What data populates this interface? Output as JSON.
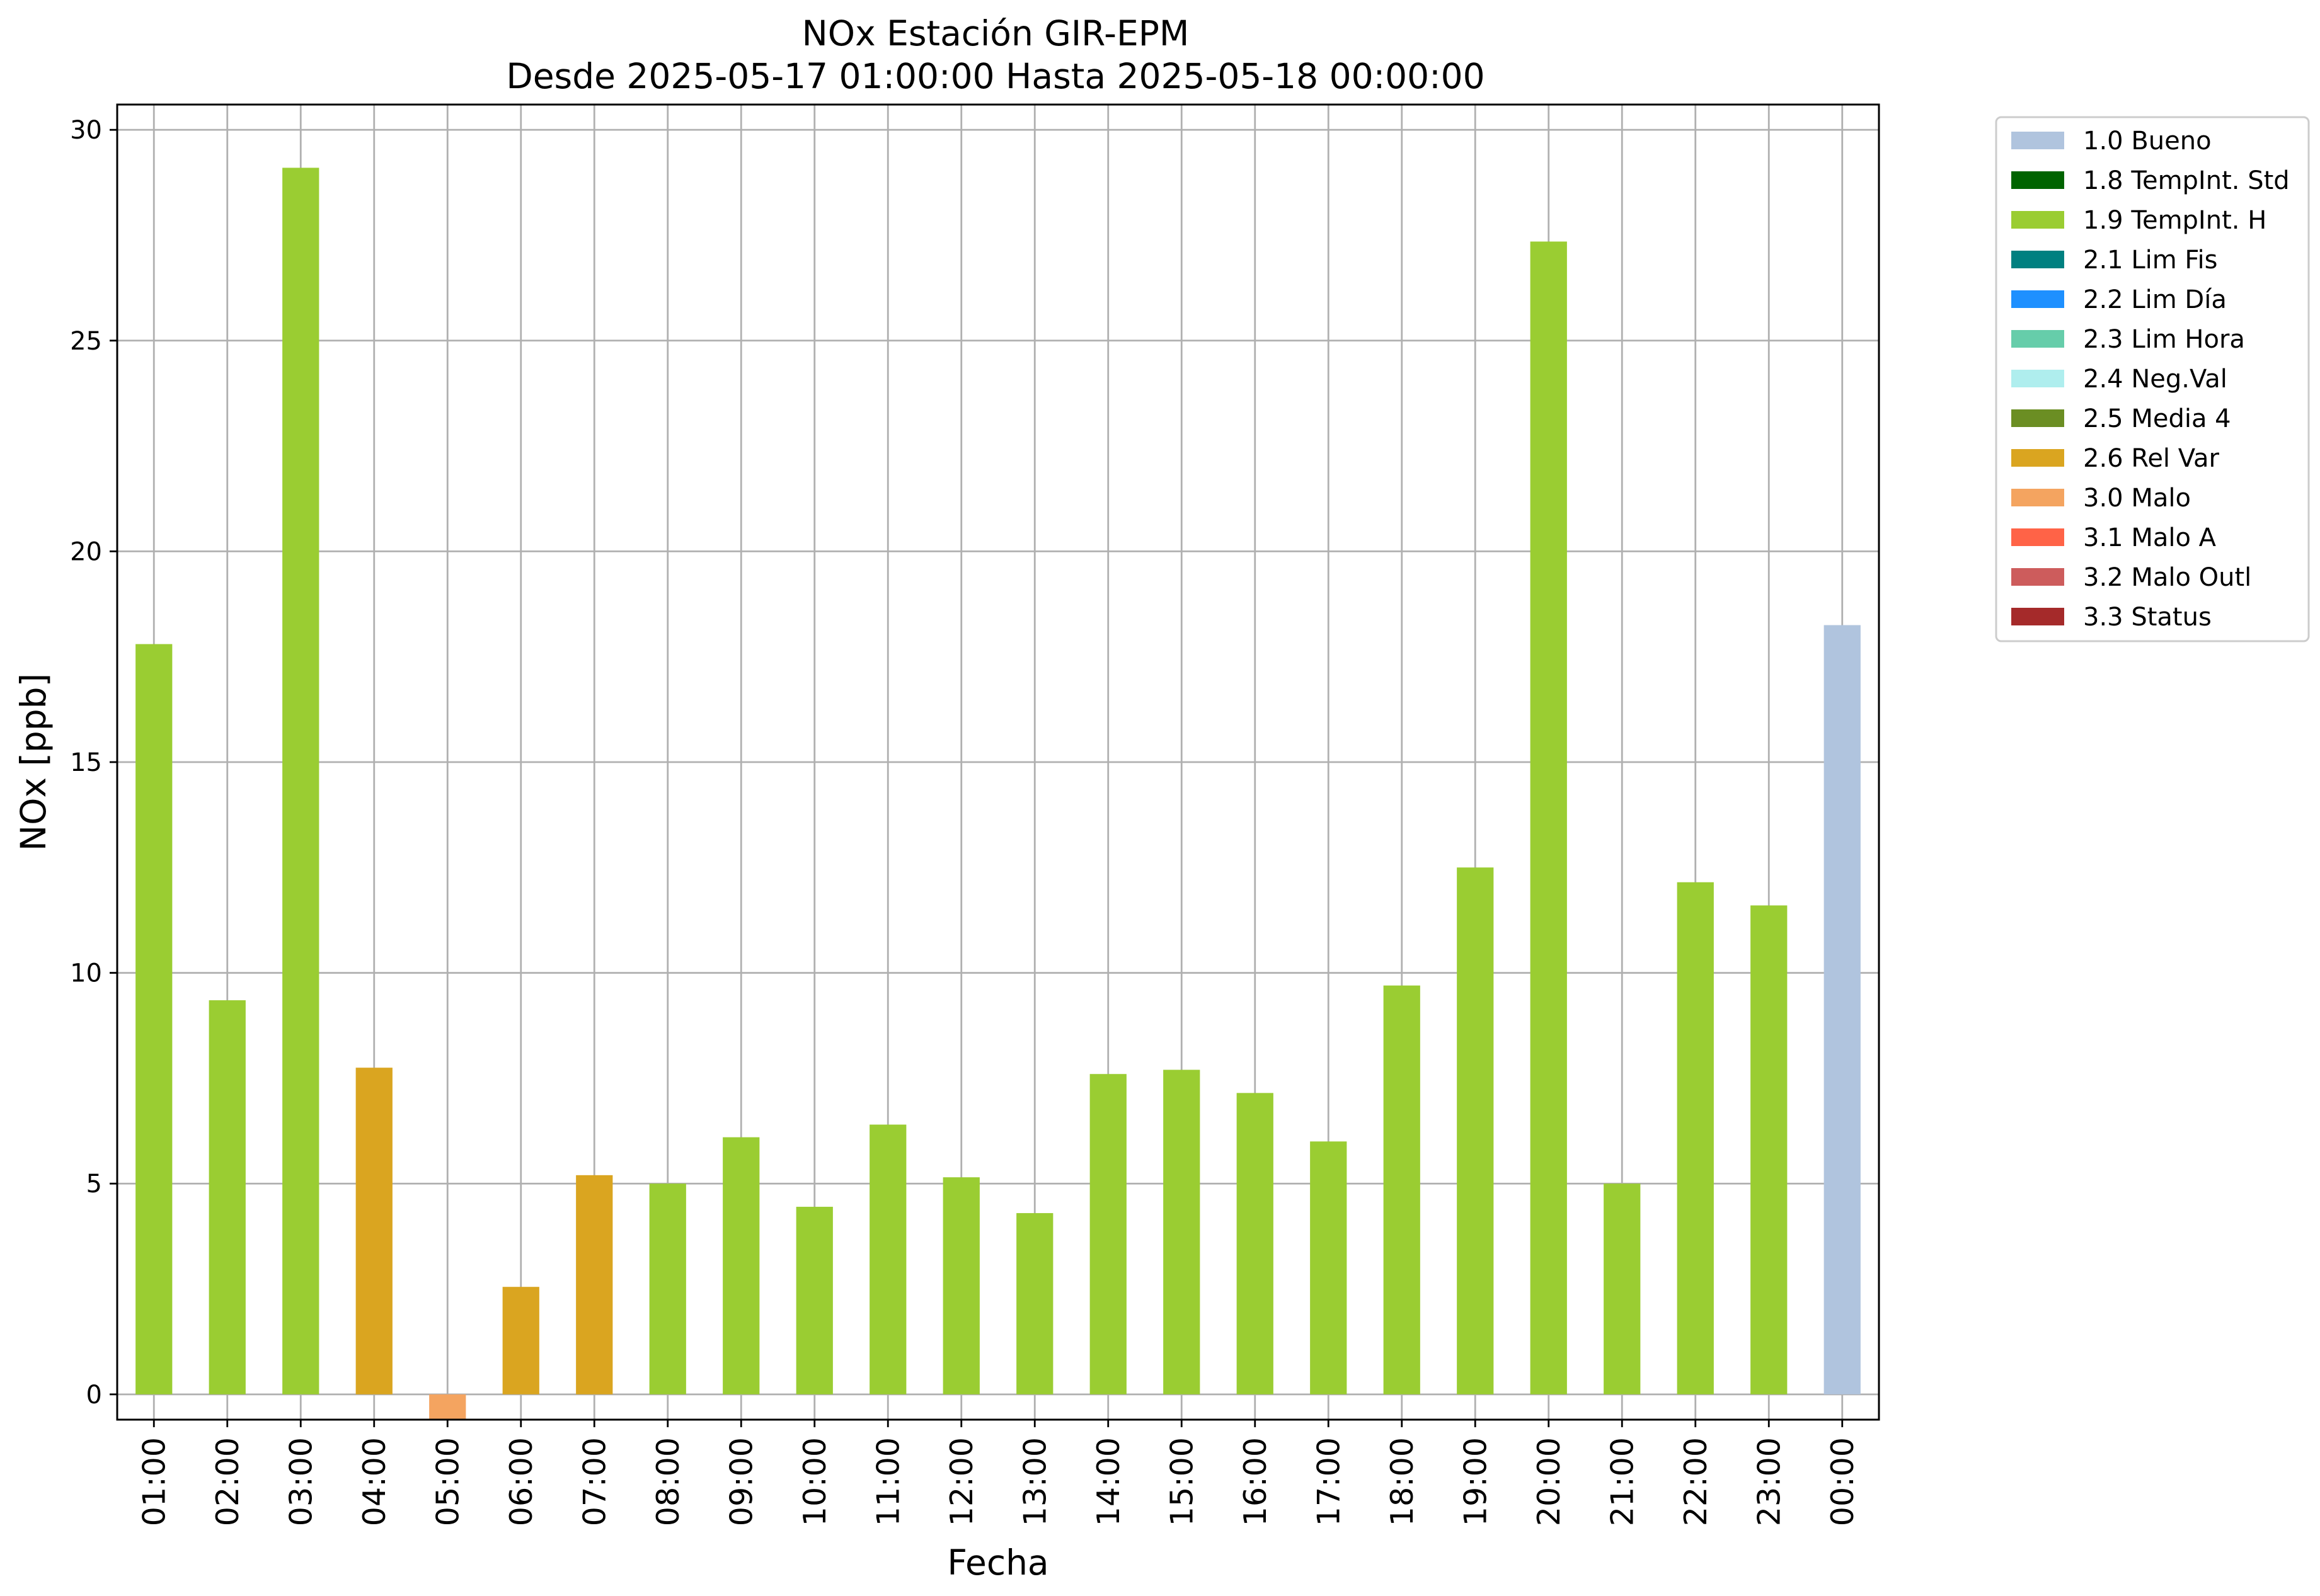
{
  "chart_data": {
    "type": "bar",
    "title": "NOx Estación GIR-EPM",
    "subtitle": "Desde 2025-05-17 01:00:00 Hasta 2025-05-18 00:00:00",
    "xlabel": "Fecha",
    "ylabel": "NOx [ppb]",
    "ylim": [
      -0.6,
      30.6
    ],
    "yticks": [
      0,
      5,
      10,
      15,
      20,
      25,
      30
    ],
    "grid": true,
    "legend_position": "outside-top-right",
    "categories": [
      "01:00",
      "02:00",
      "03:00",
      "04:00",
      "05:00",
      "06:00",
      "07:00",
      "08:00",
      "09:00",
      "10:00",
      "11:00",
      "12:00",
      "13:00",
      "14:00",
      "15:00",
      "16:00",
      "17:00",
      "18:00",
      "19:00",
      "20:00",
      "21:00",
      "22:00",
      "23:00",
      "00:00"
    ],
    "values": [
      17.8,
      9.35,
      29.1,
      7.75,
      -0.6,
      2.55,
      5.2,
      5.0,
      6.1,
      4.45,
      6.4,
      5.15,
      4.3,
      7.6,
      7.7,
      7.15,
      6.0,
      9.7,
      12.5,
      27.35,
      5.0,
      12.15,
      11.6,
      18.25
    ],
    "flags": [
      "1.9",
      "1.9",
      "1.9",
      "2.6",
      "3.0",
      "2.6",
      "2.6",
      "1.9",
      "1.9",
      "1.9",
      "1.9",
      "1.9",
      "1.9",
      "1.9",
      "1.9",
      "1.9",
      "1.9",
      "1.9",
      "1.9",
      "1.9",
      "1.9",
      "1.9",
      "1.9",
      "1.0"
    ],
    "legend": [
      {
        "code": "1.0",
        "label": "1.0 Bueno",
        "color": "#b0c4de"
      },
      {
        "code": "1.8",
        "label": "1.8 TempInt. Std",
        "color": "#006400"
      },
      {
        "code": "1.9",
        "label": "1.9 TempInt. H",
        "color": "#9acd32"
      },
      {
        "code": "2.1",
        "label": "2.1 Lim Fis",
        "color": "#008080"
      },
      {
        "code": "2.2",
        "label": "2.2 Lim Día",
        "color": "#1e90ff"
      },
      {
        "code": "2.3",
        "label": "2.3 Lim Hora",
        "color": "#66cdaa"
      },
      {
        "code": "2.4",
        "label": "2.4 Neg.Val",
        "color": "#afeeee"
      },
      {
        "code": "2.5",
        "label": "2.5 Media 4",
        "color": "#6b8e23"
      },
      {
        "code": "2.6",
        "label": "2.6 Rel Var",
        "color": "#daa520"
      },
      {
        "code": "3.0",
        "label": "3.0 Malo",
        "color": "#f4a460"
      },
      {
        "code": "3.1",
        "label": "3.1 Malo A",
        "color": "#ff6347"
      },
      {
        "code": "3.2",
        "label": "3.2 Malo Outl",
        "color": "#cd5c5c"
      },
      {
        "code": "3.3",
        "label": "3.3 Status",
        "color": "#a52a2a"
      }
    ]
  }
}
